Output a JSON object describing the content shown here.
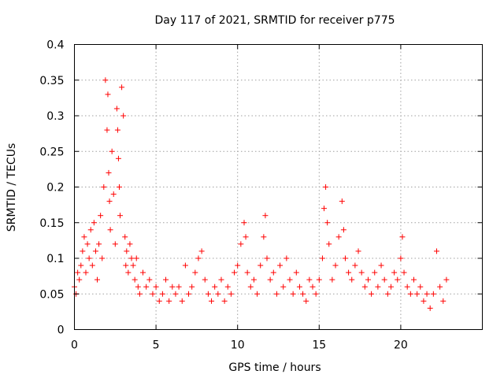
{
  "chart_data": {
    "type": "scatter",
    "title": "Day 117 of 2021, SRMTID for receiver p775",
    "xlabel": "GPS time / hours",
    "ylabel": "SRMTID / TECUs",
    "xlim": [
      0,
      25
    ],
    "ylim": [
      0,
      0.4
    ],
    "x_ticks": [
      0,
      5,
      10,
      15,
      20
    ],
    "x_tick_labels": [
      "0",
      "5",
      "10",
      "15",
      "20"
    ],
    "y_ticks": [
      0,
      0.05,
      0.1,
      0.15,
      0.2,
      0.25,
      0.3,
      0.35,
      0.4
    ],
    "y_tick_labels": [
      "0",
      "0.05",
      "0.1",
      "0.15",
      "0.2",
      "0.25",
      "0.3",
      "0.35",
      "0.4"
    ],
    "grid": true,
    "marker": "+",
    "marker_color": "#ff0000",
    "series": [
      {
        "name": "SRMTID",
        "x": [
          0.0,
          0.1,
          0.2,
          0.3,
          0.4,
          0.5,
          0.6,
          0.7,
          0.8,
          0.9,
          1.0,
          1.1,
          1.2,
          1.3,
          1.4,
          1.5,
          1.6,
          1.7,
          1.8,
          1.9,
          2.0,
          2.05,
          2.1,
          2.15,
          2.2,
          2.3,
          2.4,
          2.5,
          2.6,
          2.65,
          2.7,
          2.75,
          2.8,
          2.9,
          3.0,
          3.1,
          3.15,
          3.2,
          3.3,
          3.4,
          3.5,
          3.6,
          3.7,
          3.8,
          3.9,
          4.0,
          4.2,
          4.4,
          4.6,
          4.8,
          5.0,
          5.2,
          5.4,
          5.6,
          5.8,
          6.0,
          6.2,
          6.4,
          6.6,
          6.8,
          7.0,
          7.2,
          7.4,
          7.6,
          7.8,
          8.0,
          8.2,
          8.4,
          8.6,
          8.8,
          9.0,
          9.2,
          9.4,
          9.6,
          9.8,
          10.0,
          10.2,
          10.4,
          10.5,
          10.6,
          10.8,
          11.0,
          11.2,
          11.4,
          11.6,
          11.7,
          11.8,
          12.0,
          12.2,
          12.4,
          12.6,
          12.8,
          13.0,
          13.2,
          13.4,
          13.6,
          13.8,
          14.0,
          14.2,
          14.4,
          14.6,
          14.8,
          15.0,
          15.2,
          15.3,
          15.4,
          15.5,
          15.6,
          15.8,
          16.0,
          16.2,
          16.4,
          16.5,
          16.6,
          16.8,
          17.0,
          17.2,
          17.4,
          17.6,
          17.8,
          18.0,
          18.2,
          18.4,
          18.6,
          18.8,
          19.0,
          19.2,
          19.4,
          19.6,
          19.8,
          20.0,
          20.1,
          20.2,
          20.4,
          20.6,
          20.8,
          21.0,
          21.2,
          21.4,
          21.6,
          21.8,
          22.0,
          22.2,
          22.4,
          22.6,
          22.8
        ],
        "y": [
          0.06,
          0.05,
          0.08,
          0.07,
          0.09,
          0.11,
          0.13,
          0.08,
          0.12,
          0.1,
          0.14,
          0.09,
          0.15,
          0.11,
          0.07,
          0.12,
          0.16,
          0.1,
          0.2,
          0.35,
          0.28,
          0.33,
          0.22,
          0.18,
          0.14,
          0.25,
          0.19,
          0.12,
          0.31,
          0.28,
          0.24,
          0.2,
          0.16,
          0.34,
          0.3,
          0.13,
          0.09,
          0.11,
          0.08,
          0.12,
          0.1,
          0.09,
          0.07,
          0.1,
          0.06,
          0.05,
          0.08,
          0.06,
          0.07,
          0.05,
          0.06,
          0.04,
          0.05,
          0.07,
          0.04,
          0.06,
          0.05,
          0.06,
          0.04,
          0.09,
          0.05,
          0.06,
          0.08,
          0.1,
          0.11,
          0.07,
          0.05,
          0.04,
          0.06,
          0.05,
          0.07,
          0.04,
          0.06,
          0.05,
          0.08,
          0.09,
          0.12,
          0.15,
          0.13,
          0.08,
          0.06,
          0.07,
          0.05,
          0.09,
          0.13,
          0.16,
          0.1,
          0.07,
          0.08,
          0.05,
          0.09,
          0.06,
          0.1,
          0.07,
          0.05,
          0.08,
          0.06,
          0.05,
          0.04,
          0.07,
          0.06,
          0.05,
          0.07,
          0.1,
          0.17,
          0.2,
          0.15,
          0.12,
          0.07,
          0.09,
          0.13,
          0.18,
          0.14,
          0.1,
          0.08,
          0.07,
          0.09,
          0.11,
          0.08,
          0.06,
          0.07,
          0.05,
          0.08,
          0.06,
          0.09,
          0.07,
          0.05,
          0.06,
          0.08,
          0.07,
          0.1,
          0.13,
          0.08,
          0.06,
          0.05,
          0.07,
          0.05,
          0.06,
          0.04,
          0.05,
          0.03,
          0.05,
          0.11,
          0.06,
          0.04,
          0.07
        ]
      }
    ]
  }
}
